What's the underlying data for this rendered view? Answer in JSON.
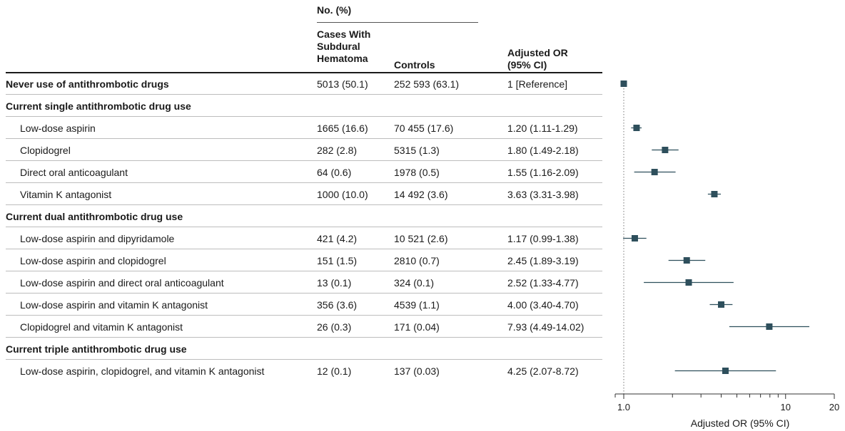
{
  "table": {
    "group_header": "No. (%)",
    "col_cases": "Cases With Subdural Hematoma",
    "col_cases_lines": [
      "Cases With",
      "Subdural",
      "Hematoma"
    ],
    "col_controls": "Controls",
    "col_or_lines": [
      "Adjusted OR",
      "(95% CI)"
    ]
  },
  "rows": [
    {
      "label": "Never use of antithrombotic drugs",
      "bold": true,
      "cases": "5013 (50.1)",
      "controls": "252 593 (63.1)",
      "or_text": "1 [Reference]"
    },
    {
      "label": "Current single antithrombotic drug use",
      "bold": true,
      "cases": "",
      "controls": "",
      "or_text": ""
    },
    {
      "label": "Low-dose aspirin",
      "bold": false,
      "cases": "1665 (16.6)",
      "controls": "70 455 (17.6)",
      "or_text": "1.20 (1.11-1.29)"
    },
    {
      "label": "Clopidogrel",
      "bold": false,
      "cases": "282 (2.8)",
      "controls": "5315 (1.3)",
      "or_text": "1.80 (1.49-2.18)"
    },
    {
      "label": "Direct oral anticoagulant",
      "bold": false,
      "cases": "64 (0.6)",
      "controls": "1978 (0.5)",
      "or_text": "1.55 (1.16-2.09)"
    },
    {
      "label": "Vitamin K antagonist",
      "bold": false,
      "cases": "1000 (10.0)",
      "controls": "14 492 (3.6)",
      "or_text": "3.63 (3.31-3.98)"
    },
    {
      "label": "Current dual antithrombotic drug use",
      "bold": true,
      "cases": "",
      "controls": "",
      "or_text": ""
    },
    {
      "label": "Low-dose aspirin and dipyridamole",
      "bold": false,
      "cases": "421 (4.2)",
      "controls": "10 521 (2.6)",
      "or_text": "1.17 (0.99-1.38)"
    },
    {
      "label": "Low-dose aspirin and clopidogrel",
      "bold": false,
      "cases": "151 (1.5)",
      "controls": "2810 (0.7)",
      "or_text": "2.45 (1.89-3.19)"
    },
    {
      "label": "Low-dose aspirin and direct oral anticoagulant",
      "bold": false,
      "cases": "13 (0.1)",
      "controls": "324 (0.1)",
      "or_text": "2.52 (1.33-4.77)"
    },
    {
      "label": "Low-dose aspirin and vitamin K antagonist",
      "bold": false,
      "cases": "356 (3.6)",
      "controls": "4539 (1.1)",
      "or_text": "4.00 (3.40-4.70)"
    },
    {
      "label": "Clopidogrel and vitamin K antagonist",
      "bold": false,
      "cases": "26 (0.3)",
      "controls": "171 (0.04)",
      "or_text": "7.93 (4.49-14.02)"
    },
    {
      "label": "Current triple antithrombotic drug use",
      "bold": true,
      "cases": "",
      "controls": "",
      "or_text": ""
    },
    {
      "label": "Low-dose aspirin, clopidogrel, and vitamin K antagonist",
      "bold": false,
      "cases": "12 (0.1)",
      "controls": "137 (0.03)",
      "or_text": "4.25 (2.07-8.72)"
    }
  ],
  "chart_data": {
    "type": "scatter",
    "xlabel": "Adjusted OR (95% CI)",
    "xscale": "log",
    "xlim": [
      1.0,
      20
    ],
    "xticks_labeled": [
      1.0,
      10,
      20
    ],
    "tick_labels": [
      "1.0",
      "10",
      "20"
    ],
    "reference_line": 1.0,
    "marker_color": "#2e4f5c",
    "points": [
      {
        "category": "Never use of antithrombotic drugs",
        "or": 1.0,
        "lo": 1.0,
        "hi": 1.0
      },
      {
        "category": "Low-dose aspirin",
        "or": 1.2,
        "lo": 1.11,
        "hi": 1.29
      },
      {
        "category": "Clopidogrel",
        "or": 1.8,
        "lo": 1.49,
        "hi": 2.18
      },
      {
        "category": "Direct oral anticoagulant",
        "or": 1.55,
        "lo": 1.16,
        "hi": 2.09
      },
      {
        "category": "Vitamin K antagonist",
        "or": 3.63,
        "lo": 3.31,
        "hi": 3.98
      },
      {
        "category": "Low-dose aspirin and dipyridamole",
        "or": 1.17,
        "lo": 0.99,
        "hi": 1.38
      },
      {
        "category": "Low-dose aspirin and clopidogrel",
        "or": 2.45,
        "lo": 1.89,
        "hi": 3.19
      },
      {
        "category": "Low-dose aspirin and direct oral anticoagulant",
        "or": 2.52,
        "lo": 1.33,
        "hi": 4.77
      },
      {
        "category": "Low-dose aspirin and vitamin K antagonist",
        "or": 4.0,
        "lo": 3.4,
        "hi": 4.7
      },
      {
        "category": "Clopidogrel and vitamin K antagonist",
        "or": 7.93,
        "lo": 4.49,
        "hi": 14.02
      },
      {
        "category": "Low-dose aspirin, clopidogrel, and vitamin K antagonist",
        "or": 4.25,
        "lo": 2.07,
        "hi": 8.72
      }
    ]
  }
}
